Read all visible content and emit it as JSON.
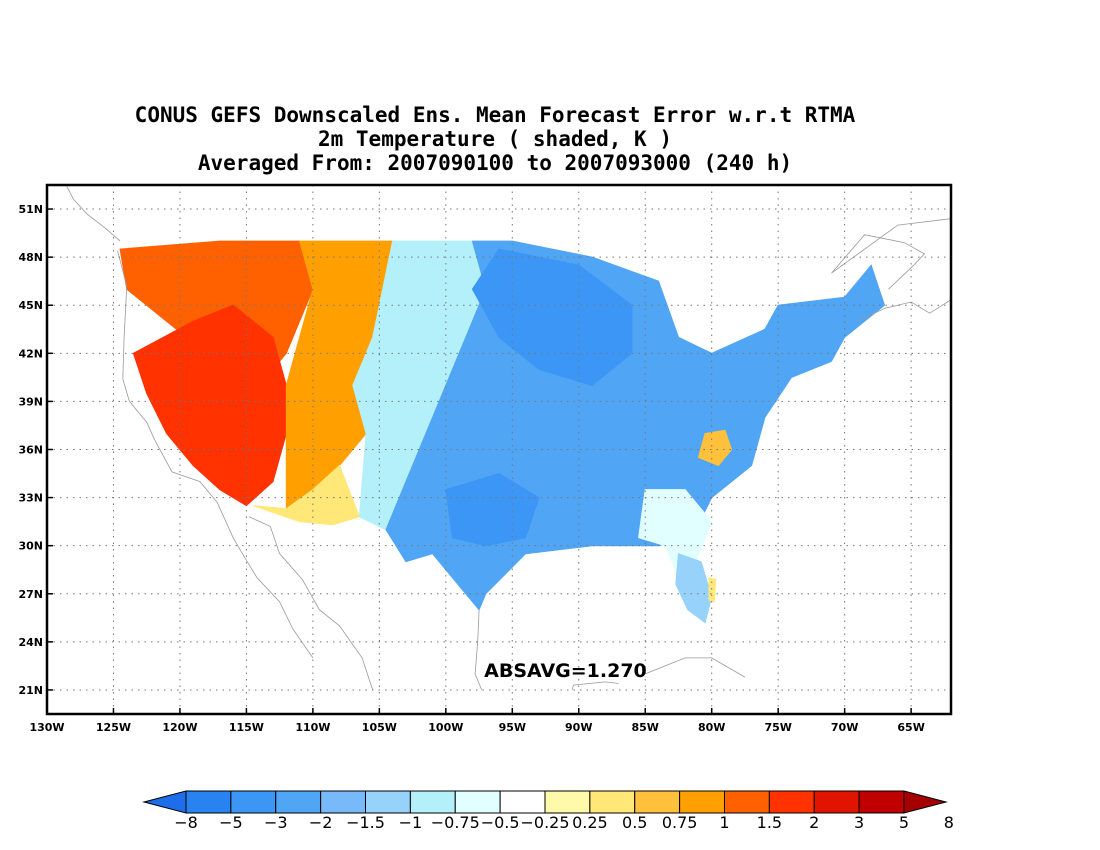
{
  "title": {
    "line1": "CONUS GEFS Downscaled Ens. Mean Forecast Error w.r.t RTMA",
    "line2": "2m Temperature ( shaded, K )",
    "line3": "Averaged From: 2007090100 to 2007093000 (240 h)"
  },
  "map": {
    "lon_range": [
      -130,
      -62
    ],
    "lat_range": [
      19.5,
      52.5
    ],
    "lon_ticks": [
      -130,
      -125,
      -120,
      -115,
      -110,
      -105,
      -100,
      -95,
      -90,
      -85,
      -80,
      -75,
      -70,
      -65
    ],
    "lon_labels": [
      "130W",
      "125W",
      "120W",
      "115W",
      "110W",
      "105W",
      "100W",
      "95W",
      "90W",
      "85W",
      "80W",
      "75W",
      "70W",
      "65W"
    ],
    "lat_ticks": [
      21,
      24,
      27,
      30,
      33,
      36,
      39,
      42,
      45,
      48,
      51
    ],
    "lat_labels": [
      "21N",
      "24N",
      "27N",
      "30N",
      "33N",
      "36N",
      "39N",
      "42N",
      "45N",
      "48N",
      "51N"
    ],
    "grid": true,
    "annotation": "ABSAVG=1.270",
    "annotation_lonlat": [
      -91,
      21.8
    ]
  },
  "colorbar": {
    "colors": [
      "#1e6eeb",
      "#2882f0",
      "#3c96f5",
      "#50a5f5",
      "#78b9fa",
      "#96d2fa",
      "#b4f0fa",
      "#e1ffff",
      "#ffffff",
      "#fffaaa",
      "#ffe878",
      "#ffc03c",
      "#ffa000",
      "#ff6000",
      "#ff3200",
      "#e11400",
      "#c00000",
      "#a50000"
    ],
    "labels": [
      "−8",
      "−5",
      "−3",
      "−2",
      "−1.5",
      "−1",
      "−0.75",
      "−0.5",
      "−0.25",
      "0.25",
      "0.5",
      "0.75",
      "1",
      "1.5",
      "2",
      "3",
      "5",
      "8"
    ]
  },
  "regions": [
    {
      "name": "pacific-northwest-warm",
      "value": 1.5,
      "color": "#ff6000",
      "lonlat": [
        [
          -124.5,
          48.5
        ],
        [
          -117,
          49
        ],
        [
          -111,
          49
        ],
        [
          -110,
          46
        ],
        [
          -112,
          42
        ],
        [
          -114,
          40
        ],
        [
          -118,
          42
        ],
        [
          -121,
          44
        ],
        [
          -124,
          46
        ]
      ]
    },
    {
      "name": "great-basin-warm",
      "value": 2,
      "color": "#ff3200",
      "lonlat": [
        [
          -123.5,
          42
        ],
        [
          -119,
          44
        ],
        [
          -116,
          45
        ],
        [
          -113,
          43
        ],
        [
          -112,
          40
        ],
        [
          -112,
          37
        ],
        [
          -113,
          34
        ],
        [
          -115,
          32.5
        ],
        [
          -117,
          33.5
        ],
        [
          -119,
          35
        ],
        [
          -121,
          37
        ],
        [
          -122.5,
          39.5
        ]
      ]
    },
    {
      "name": "rockies-moderate-warm",
      "value": 1,
      "color": "#ffa000",
      "lonlat": [
        [
          -111,
          49
        ],
        [
          -104,
          49
        ],
        [
          -102.5,
          48
        ],
        [
          -104,
          46
        ],
        [
          -105.5,
          43
        ],
        [
          -107,
          40
        ],
        [
          -106,
          37
        ],
        [
          -108,
          35
        ],
        [
          -110,
          33.5
        ],
        [
          -112,
          32
        ],
        [
          -112,
          40
        ],
        [
          -110,
          46
        ]
      ]
    },
    {
      "name": "southwest-desert-light",
      "value": 0.5,
      "color": "#ffe878",
      "lonlat": [
        [
          -114.5,
          32.5
        ],
        [
          -111,
          31.5
        ],
        [
          -108.5,
          31.3
        ],
        [
          -106.5,
          31.8
        ],
        [
          -108,
          35
        ],
        [
          -110,
          33.5
        ],
        [
          -112,
          32.3
        ]
      ]
    },
    {
      "name": "plains-slight-cool",
      "value": -0.75,
      "color": "#b4f0fa",
      "lonlat": [
        [
          -104,
          49
        ],
        [
          -98,
          49
        ],
        [
          -97,
          46
        ],
        [
          -99,
          42
        ],
        [
          -101,
          38
        ],
        [
          -103,
          34
        ],
        [
          -104.5,
          31
        ],
        [
          -106.5,
          31.8
        ],
        [
          -106,
          37
        ],
        [
          -107,
          40
        ],
        [
          -105.5,
          43
        ]
      ]
    },
    {
      "name": "central-cool",
      "value": -2,
      "color": "#50a5f5",
      "lonlat": [
        [
          -98,
          49
        ],
        [
          -95,
          49
        ],
        [
          -89,
          48
        ],
        [
          -84,
          46.5
        ],
        [
          -82.5,
          43
        ],
        [
          -80,
          42
        ],
        [
          -76,
          43.5
        ],
        [
          -75,
          45
        ],
        [
          -70,
          45.5
        ],
        [
          -68,
          47.5
        ],
        [
          -67,
          45
        ],
        [
          -70,
          43
        ],
        [
          -71,
          41.5
        ],
        [
          -74,
          40.5
        ],
        [
          -76,
          38
        ],
        [
          -77,
          35
        ],
        [
          -80,
          33
        ],
        [
          -81.5,
          30.5
        ],
        [
          -84,
          30
        ],
        [
          -89,
          30
        ],
        [
          -94,
          29.5
        ],
        [
          -97,
          27
        ],
        [
          -97.5,
          26
        ],
        [
          -99,
          27.5
        ],
        [
          -101,
          29.5
        ],
        [
          -103,
          29
        ],
        [
          -104.5,
          31
        ],
        [
          -103,
          34
        ],
        [
          -101,
          38
        ],
        [
          -99,
          42
        ],
        [
          -97,
          46
        ]
      ]
    },
    {
      "name": "upper-midwest-strong-cool",
      "value": -3,
      "color": "#3c96f5",
      "lonlat": [
        [
          -96,
          48.5
        ],
        [
          -90,
          47.5
        ],
        [
          -86,
          45
        ],
        [
          -86,
          42
        ],
        [
          -89,
          40
        ],
        [
          -93,
          41
        ],
        [
          -96,
          43
        ],
        [
          -98,
          46
        ]
      ]
    },
    {
      "name": "texas-strong-cool",
      "value": -3,
      "color": "#3c96f5",
      "lonlat": [
        [
          -100,
          33.5
        ],
        [
          -96,
          34.5
        ],
        [
          -93,
          33
        ],
        [
          -94,
          30.5
        ],
        [
          -97,
          30
        ],
        [
          -99.5,
          30.5
        ]
      ]
    },
    {
      "name": "carolina-warm-patch",
      "value": 0.75,
      "color": "#ffc03c",
      "lonlat": [
        [
          -80.5,
          37
        ],
        [
          -79,
          37.2
        ],
        [
          -78.5,
          36
        ],
        [
          -79.5,
          35
        ],
        [
          -81,
          35.5
        ]
      ]
    },
    {
      "name": "southeast-slight-cool",
      "value": -0.5,
      "color": "#e1ffff",
      "lonlat": [
        [
          -85,
          33.5
        ],
        [
          -82,
          33.5
        ],
        [
          -80,
          31.5
        ],
        [
          -81.2,
          29
        ],
        [
          -82.5,
          28
        ],
        [
          -83.5,
          30
        ],
        [
          -85.5,
          30.5
        ]
      ]
    },
    {
      "name": "florida-cool",
      "value": -1,
      "color": "#96d2fa",
      "lonlat": [
        [
          -82.5,
          29.5
        ],
        [
          -80.8,
          29
        ],
        [
          -80,
          26.8
        ],
        [
          -80.5,
          25.2
        ],
        [
          -81.8,
          26
        ],
        [
          -82.7,
          27.6
        ]
      ]
    },
    {
      "name": "florida-east-warm",
      "value": 0.5,
      "color": "#ffe878",
      "lonlat": [
        [
          -80.2,
          28
        ],
        [
          -79.7,
          27.9
        ],
        [
          -79.8,
          26.5
        ],
        [
          -80.2,
          26.6
        ]
      ]
    }
  ],
  "coastline_lonlat": [
    [
      [
        -124.7,
        48.4
      ],
      [
        -124,
        46.2
      ],
      [
        -124.2,
        43
      ],
      [
        -124.3,
        40.4
      ],
      [
        -123.8,
        39
      ],
      [
        -122.5,
        37.7
      ],
      [
        -121.9,
        36.6
      ],
      [
        -120.6,
        34.6
      ],
      [
        -118.5,
        34
      ],
      [
        -117.2,
        32.7
      ],
      [
        -116,
        30.5
      ],
      [
        -115.3,
        29.5
      ],
      [
        -114.2,
        28
      ],
      [
        -112.5,
        26.5
      ],
      [
        -111.5,
        24.8
      ],
      [
        -110,
        23
      ]
    ],
    [
      [
        -114.8,
        31.8
      ],
      [
        -113.2,
        31.2
      ],
      [
        -112.5,
        29.5
      ],
      [
        -110.8,
        27.9
      ],
      [
        -109.5,
        26
      ],
      [
        -108,
        25
      ],
      [
        -106.3,
        23
      ],
      [
        -105.5,
        21
      ]
    ],
    [
      [
        -97.5,
        26
      ],
      [
        -97.6,
        24
      ],
      [
        -97.8,
        22
      ],
      [
        -97.3,
        21
      ]
    ],
    [
      [
        -90.5,
        21
      ],
      [
        -90.4,
        21.3
      ],
      [
        -88,
        21.5
      ],
      [
        -87,
        21.4
      ]
    ],
    [
      [
        -85,
        22
      ],
      [
        -82,
        23
      ],
      [
        -80,
        23
      ],
      [
        -77.5,
        21.8
      ]
    ],
    [
      [
        -69,
        44
      ],
      [
        -67,
        44.8
      ],
      [
        -65,
        45.2
      ],
      [
        -63.6,
        44.5
      ],
      [
        -61.5,
        45.6
      ]
    ],
    [
      [
        -66.7,
        46
      ],
      [
        -64.8,
        47.5
      ],
      [
        -64,
        48.2
      ],
      [
        -65.5,
        48.9
      ],
      [
        -68.5,
        49.4
      ],
      [
        -71,
        47
      ],
      [
        -66,
        50
      ],
      [
        -62,
        50.4
      ]
    ],
    [
      [
        -124.5,
        49
      ],
      [
        -125.6,
        49.8
      ],
      [
        -127,
        50.7
      ],
      [
        -128,
        51.6
      ],
      [
        -128.5,
        52.4
      ]
    ],
    [
      [
        -66,
        18.5
      ],
      [
        -65.5,
        18.3
      ]
    ]
  ]
}
